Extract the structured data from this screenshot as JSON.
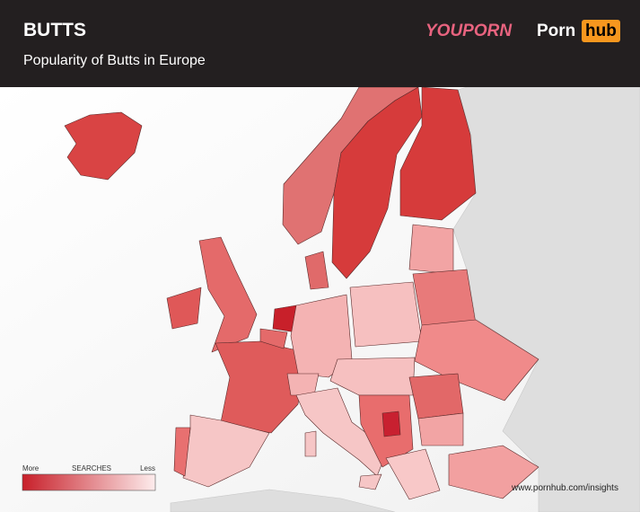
{
  "header": {
    "title": "BUTTS",
    "subtitle": "Popularity of Butts in Europe",
    "logos": [
      "YOUPORN",
      "Porn",
      "hub"
    ]
  },
  "legend": {
    "more": "More",
    "label": "SEARCHES",
    "less": "Less"
  },
  "footer": {
    "url": "www.pornhub.com/insights"
  }
}
